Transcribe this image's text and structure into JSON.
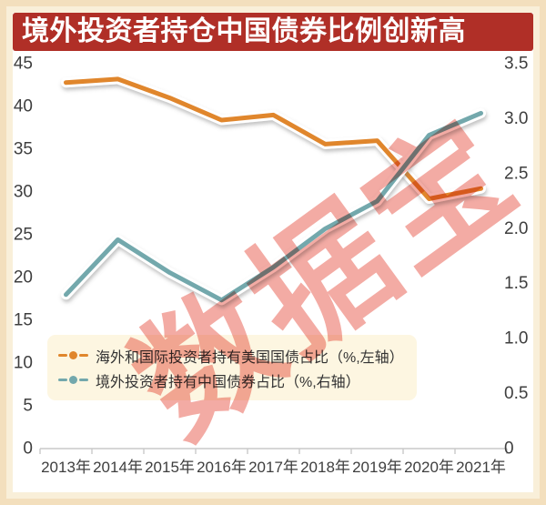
{
  "page_title": "境外投资者持仓中国债券比例创新高",
  "watermark_text": "数据宝",
  "colors": {
    "banner_bg": "#b02f27",
    "banner_text": "#ffffff",
    "us_series": "#e0862c",
    "cn_series": "#73a8ac",
    "axis_text": "#3e3e3e",
    "axis_line": "#c9c9c9",
    "legend_bg": "#fdf6e1",
    "legend_text": "#333333",
    "watermark_pink": "#f3aba4",
    "frame_border": "#f3dfbd",
    "frame_inner": "#f9efd9",
    "plot_bg": "#ffffff"
  },
  "chart_data": {
    "type": "line",
    "title": "境外投资者持仓中国债券比例创新高",
    "categories": [
      "2013年",
      "2014年",
      "2015年",
      "2016年",
      "2017年",
      "2018年",
      "2019年",
      "2020年",
      "2021年"
    ],
    "series": [
      {
        "name": "海外和国际投资者持有美国国债占比（%,左轴）",
        "axis": "left",
        "color": "#e0862c",
        "values": [
          42.8,
          43.2,
          41.0,
          38.4,
          39.0,
          35.6,
          36.0,
          29.2,
          30.4
        ]
      },
      {
        "name": "境外投资者持有中国债券占比（%,右轴）",
        "axis": "right",
        "color": "#73a8ac",
        "values": [
          1.4,
          1.9,
          1.6,
          1.35,
          1.65,
          2.0,
          2.25,
          2.85,
          3.05
        ]
      }
    ],
    "left_axis": {
      "min": 0,
      "max": 45,
      "tick_labels": [
        "45",
        "40",
        "35",
        "30",
        "25",
        "20",
        "15",
        "10",
        "5",
        "0"
      ]
    },
    "right_axis": {
      "min": 0,
      "max": 3.5,
      "tick_labels": [
        "3.5",
        "3.0",
        "2.5",
        "2.0",
        "1.5",
        "1.0",
        "0.5",
        "0"
      ]
    },
    "grid": false,
    "legend_position": "inside-bottom-left",
    "xlabel": "",
    "ylabel": ""
  }
}
